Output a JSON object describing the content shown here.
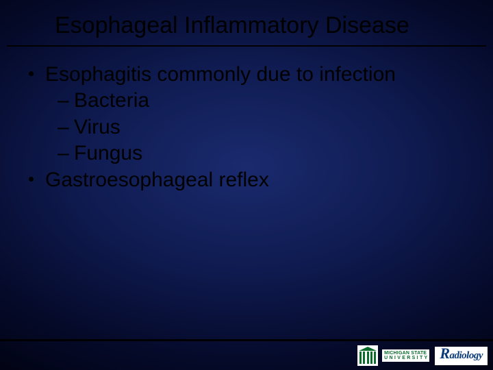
{
  "title": "Esophageal Inflammatory Disease",
  "bullets": {
    "b1": "Esophagitis commonly due to infection",
    "s1": "Bacteria",
    "s2": "Virus",
    "s3": "Fungus",
    "b2": "Gastroesophageal reflex"
  },
  "footer": {
    "uni_line1": "MICHIGAN STATE",
    "uni_line2": "U N I V E R S I T Y",
    "dept": "adiology",
    "dept_initial": "R"
  },
  "colors": {
    "bg_center": "#1a2a6e",
    "bg_edge": "#010312",
    "text": "#000000",
    "msu_green": "#0a6b2a",
    "radiology_blue": "#0a3a7a"
  }
}
